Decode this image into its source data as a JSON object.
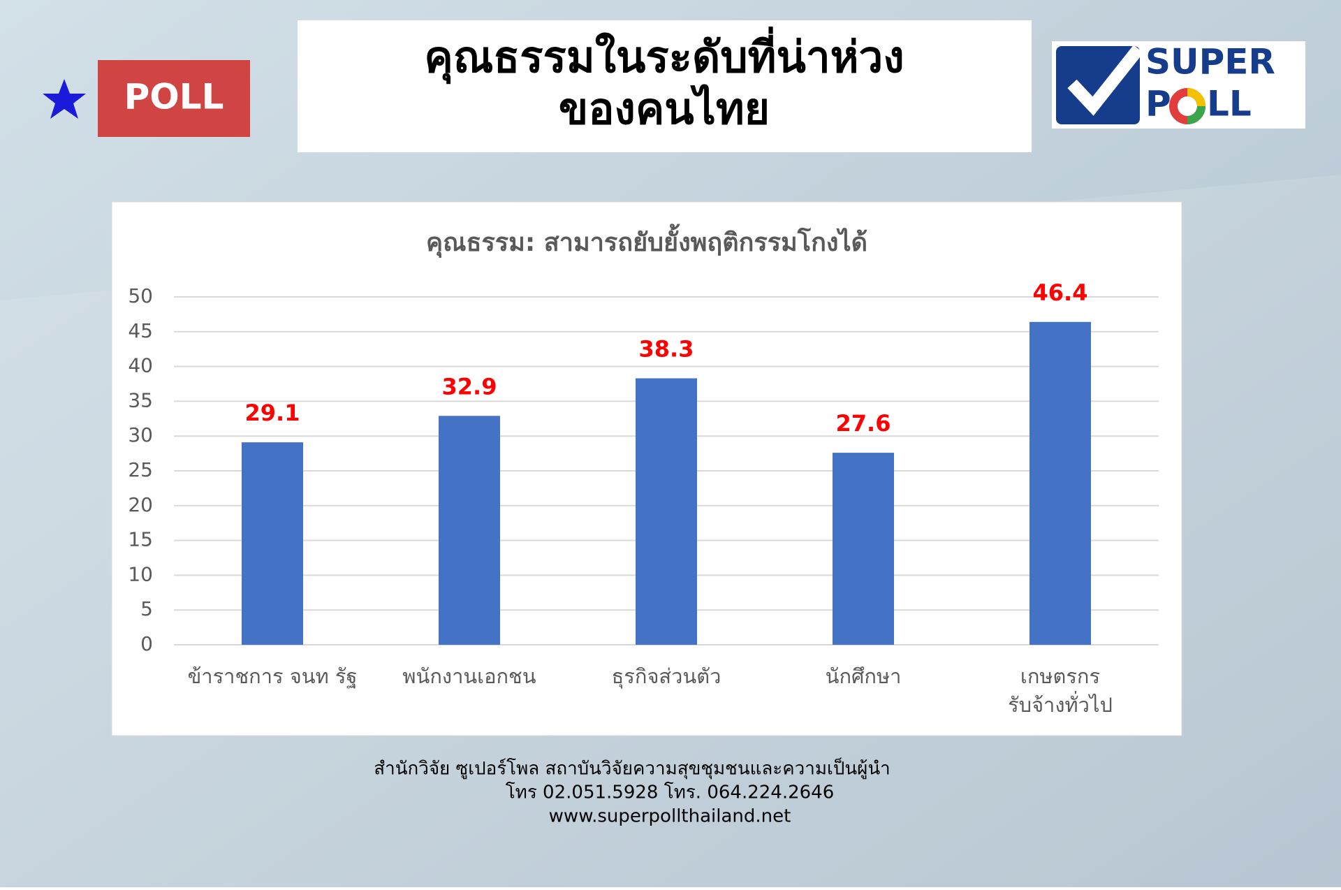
{
  "header": {
    "badge": "POLL",
    "title_lines": [
      "คุณธรรมในระดับที่น่าห่วง",
      "ของคนไทย"
    ]
  },
  "logo": {
    "top": "SUPER",
    "bottom_left": "P",
    "bottom_right": "LL"
  },
  "chart_data": {
    "type": "bar",
    "title": "คุณธรรม:  สามารถยับยั้งพฤติกรรมโกงได้",
    "categories": [
      "ข้าราชการ จนท รัฐ",
      "พนักงานเอกชน",
      "ธุรกิจส่วนตัว",
      "นักศึกษา",
      [
        "เกษตรกร",
        "รับจ้างทั่วไป"
      ]
    ],
    "values": [
      29.1,
      32.9,
      38.3,
      27.6,
      46.4
    ],
    "color": "#4472c4",
    "value_label_color": "#ff0000",
    "ylim": [
      0,
      50
    ],
    "yticks": [
      0,
      5,
      10,
      15,
      20,
      25,
      30,
      35,
      40,
      45,
      50
    ],
    "grid": true
  },
  "footer": [
    "สำนักวิจัย ซูเปอร์โพล สถาบันวิจัยความสุขชุมชนและความเป็นผู้นำ",
    "โทร 02.051.5928  โทร. 064.224.2646",
    "www.superpollthailand.net"
  ]
}
